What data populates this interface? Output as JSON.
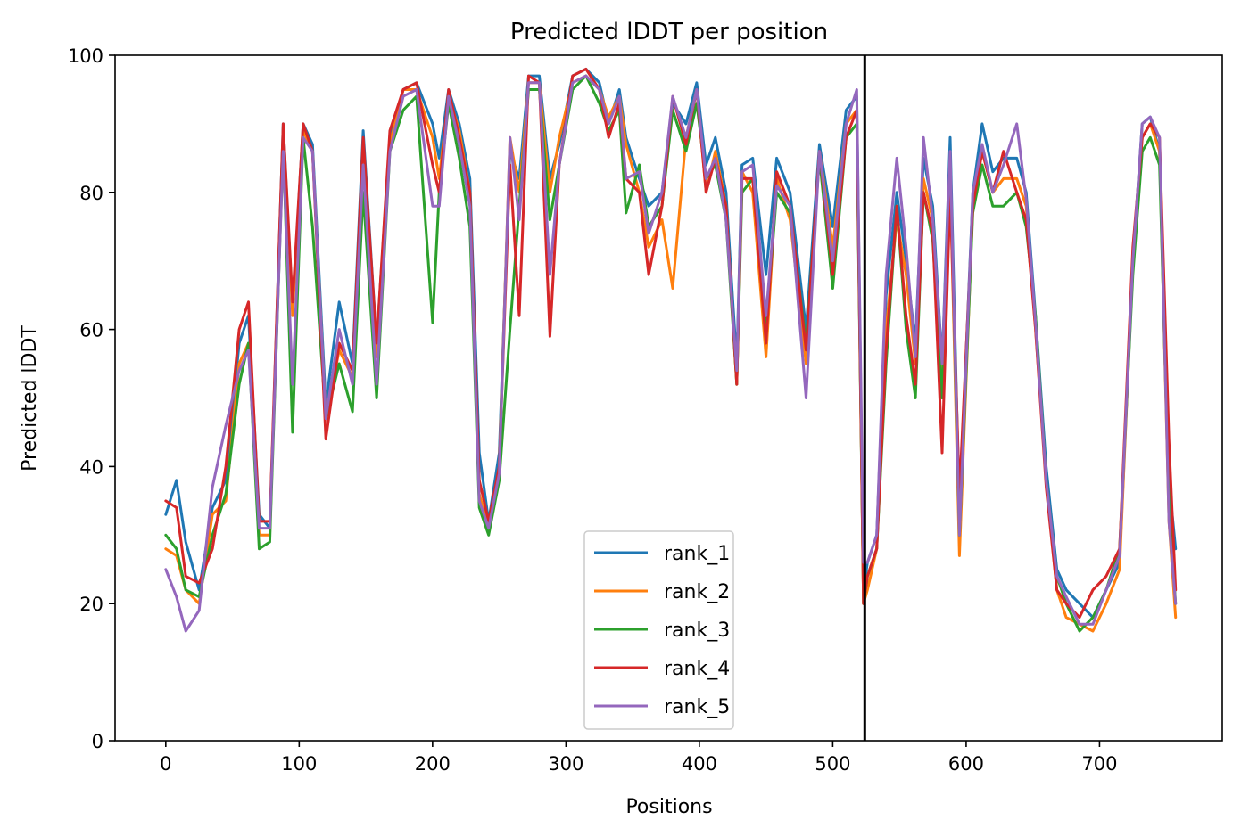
{
  "chart_data": {
    "type": "line",
    "title": "Predicted lDDT per position",
    "xlabel": "Positions",
    "ylabel": "Predicted lDDT",
    "xlim": [
      -38,
      792
    ],
    "ylim": [
      0,
      100
    ],
    "xticks": [
      0,
      100,
      200,
      300,
      400,
      500,
      600,
      700
    ],
    "yticks": [
      0,
      20,
      40,
      60,
      80,
      100
    ],
    "grid": false,
    "legend_position": "lower center",
    "vline_x": 524,
    "series": [
      {
        "name": "rank_1",
        "color": "#1f77b4",
        "x": [
          0,
          8,
          15,
          25,
          35,
          45,
          55,
          62,
          70,
          78,
          88,
          95,
          103,
          110,
          120,
          130,
          140,
          148,
          158,
          168,
          178,
          188,
          200,
          205,
          212,
          220,
          228,
          235,
          242,
          250,
          258,
          265,
          272,
          280,
          288,
          295,
          305,
          315,
          325,
          332,
          340,
          345,
          355,
          362,
          372,
          380,
          390,
          398,
          405,
          412,
          420,
          428,
          432,
          440,
          450,
          458,
          468,
          480,
          490,
          500,
          510,
          518,
          523,
          526,
          533,
          540,
          548,
          555,
          562,
          568,
          575,
          582,
          588,
          595,
          605,
          612,
          620,
          628,
          638,
          645,
          652,
          660,
          668,
          675,
          685,
          695,
          705,
          715,
          725,
          732,
          738,
          745,
          752,
          757
        ],
        "y": [
          33,
          38,
          29,
          22,
          34,
          38,
          58,
          62,
          33,
          31,
          90,
          63,
          90,
          87,
          49,
          64,
          55,
          89,
          58,
          88,
          95,
          96,
          90,
          85,
          95,
          90,
          82,
          42,
          32,
          42,
          86,
          82,
          97,
          97,
          82,
          87,
          97,
          98,
          96,
          90,
          95,
          88,
          82,
          78,
          80,
          93,
          90,
          96,
          84,
          88,
          80,
          55,
          84,
          85,
          68,
          85,
          80,
          60,
          87,
          75,
          92,
          94,
          22,
          26,
          30,
          65,
          80,
          70,
          58,
          85,
          78,
          55,
          88,
          33,
          80,
          90,
          83,
          85,
          85,
          80,
          62,
          40,
          25,
          22,
          20,
          18,
          22,
          26,
          70,
          90,
          91,
          86,
          38,
          28
        ]
      },
      {
        "name": "rank_2",
        "color": "#ff7f0e",
        "x": [
          0,
          8,
          15,
          25,
          35,
          45,
          55,
          62,
          70,
          78,
          88,
          95,
          103,
          110,
          120,
          130,
          140,
          148,
          158,
          168,
          178,
          188,
          200,
          205,
          212,
          220,
          228,
          235,
          242,
          250,
          258,
          265,
          272,
          280,
          288,
          295,
          305,
          315,
          325,
          332,
          340,
          345,
          355,
          362,
          372,
          380,
          390,
          398,
          405,
          412,
          420,
          428,
          432,
          440,
          450,
          458,
          468,
          480,
          490,
          500,
          510,
          518,
          523,
          526,
          533,
          540,
          548,
          555,
          562,
          568,
          575,
          582,
          588,
          595,
          605,
          612,
          620,
          628,
          638,
          645,
          652,
          660,
          668,
          675,
          685,
          695,
          705,
          715,
          725,
          732,
          738,
          745,
          752,
          757
        ],
        "y": [
          28,
          27,
          22,
          20,
          33,
          35,
          55,
          58,
          30,
          30,
          89,
          62,
          89,
          86,
          47,
          57,
          53,
          85,
          56,
          87,
          95,
          95,
          88,
          82,
          94,
          89,
          80,
          36,
          31,
          40,
          88,
          80,
          96,
          96,
          80,
          88,
          96,
          97,
          95,
          91,
          94,
          87,
          80,
          72,
          76,
          66,
          88,
          95,
          80,
          86,
          78,
          52,
          83,
          80,
          56,
          82,
          76,
          55,
          86,
          72,
          90,
          92,
          20,
          22,
          28,
          60,
          76,
          68,
          55,
          82,
          76,
          52,
          82,
          27,
          78,
          86,
          80,
          82,
          82,
          78,
          60,
          38,
          22,
          18,
          17,
          16,
          20,
          25,
          70,
          88,
          90,
          86,
          32,
          18
        ]
      },
      {
        "name": "rank_3",
        "color": "#2ca02c",
        "x": [
          0,
          8,
          15,
          25,
          35,
          45,
          55,
          62,
          70,
          78,
          88,
          95,
          103,
          110,
          120,
          130,
          140,
          148,
          158,
          168,
          178,
          188,
          200,
          205,
          212,
          220,
          228,
          235,
          242,
          250,
          258,
          265,
          272,
          280,
          288,
          295,
          305,
          315,
          325,
          332,
          340,
          345,
          355,
          362,
          372,
          380,
          390,
          398,
          405,
          412,
          420,
          428,
          432,
          440,
          450,
          458,
          468,
          480,
          490,
          500,
          510,
          518,
          523,
          526,
          533,
          540,
          548,
          555,
          562,
          568,
          575,
          582,
          588,
          595,
          605,
          612,
          620,
          628,
          638,
          645,
          652,
          660,
          668,
          675,
          685,
          695,
          705,
          715,
          725,
          732,
          738,
          745,
          752,
          757
        ],
        "y": [
          30,
          28,
          22,
          21,
          30,
          36,
          52,
          58,
          28,
          29,
          87,
          45,
          88,
          75,
          47,
          55,
          48,
          80,
          50,
          86,
          92,
          94,
          61,
          80,
          93,
          85,
          75,
          34,
          30,
          38,
          60,
          78,
          95,
          95,
          76,
          84,
          95,
          97,
          93,
          89,
          92,
          77,
          84,
          75,
          78,
          92,
          86,
          93,
          82,
          84,
          76,
          52,
          80,
          82,
          60,
          80,
          77,
          58,
          85,
          66,
          88,
          90,
          20,
          24,
          28,
          55,
          78,
          60,
          50,
          80,
          73,
          50,
          84,
          30,
          77,
          84,
          78,
          78,
          80,
          75,
          62,
          38,
          24,
          20,
          16,
          18,
          22,
          28,
          68,
          86,
          88,
          84,
          35,
          20
        ]
      },
      {
        "name": "rank_4",
        "color": "#d62728",
        "x": [
          0,
          8,
          15,
          25,
          35,
          45,
          55,
          62,
          70,
          78,
          88,
          95,
          103,
          110,
          120,
          130,
          140,
          148,
          158,
          168,
          178,
          188,
          200,
          205,
          212,
          220,
          228,
          235,
          242,
          250,
          258,
          265,
          272,
          280,
          288,
          295,
          305,
          315,
          325,
          332,
          340,
          345,
          355,
          362,
          372,
          380,
          390,
          398,
          405,
          412,
          420,
          428,
          432,
          440,
          450,
          458,
          468,
          480,
          490,
          500,
          510,
          518,
          523,
          526,
          533,
          540,
          548,
          555,
          562,
          568,
          575,
          582,
          588,
          595,
          605,
          612,
          620,
          628,
          638,
          645,
          652,
          660,
          668,
          675,
          685,
          695,
          705,
          715,
          725,
          732,
          738,
          745,
          752,
          757
        ],
        "y": [
          35,
          34,
          24,
          23,
          28,
          40,
          60,
          64,
          32,
          32,
          90,
          64,
          90,
          86,
          44,
          58,
          54,
          88,
          58,
          89,
          95,
          96,
          84,
          80,
          95,
          88,
          80,
          38,
          32,
          40,
          84,
          62,
          97,
          96,
          59,
          84,
          97,
          98,
          95,
          88,
          93,
          82,
          80,
          68,
          78,
          94,
          87,
          95,
          80,
          85,
          78,
          52,
          82,
          82,
          58,
          83,
          78,
          57,
          86,
          68,
          88,
          92,
          20,
          24,
          28,
          57,
          78,
          62,
          52,
          80,
          74,
          42,
          80,
          36,
          78,
          86,
          80,
          86,
          80,
          76,
          60,
          37,
          22,
          20,
          18,
          22,
          24,
          28,
          72,
          88,
          90,
          88,
          44,
          22
        ]
      },
      {
        "name": "rank_5",
        "color": "#9467bd",
        "x": [
          0,
          8,
          15,
          25,
          35,
          45,
          55,
          62,
          70,
          78,
          88,
          95,
          103,
          110,
          120,
          130,
          140,
          148,
          158,
          168,
          178,
          188,
          200,
          205,
          212,
          220,
          228,
          235,
          242,
          250,
          258,
          265,
          272,
          280,
          288,
          295,
          305,
          315,
          325,
          332,
          340,
          345,
          355,
          362,
          372,
          380,
          390,
          398,
          405,
          412,
          420,
          428,
          432,
          440,
          450,
          458,
          468,
          480,
          490,
          500,
          510,
          518,
          523,
          526,
          533,
          540,
          548,
          555,
          562,
          568,
          575,
          582,
          588,
          595,
          605,
          612,
          620,
          628,
          638,
          645,
          652,
          660,
          668,
          675,
          685,
          695,
          705,
          715,
          725,
          732,
          738,
          745,
          752,
          757
        ],
        "y": [
          25,
          21,
          16,
          19,
          37,
          46,
          54,
          57,
          31,
          31,
          86,
          52,
          88,
          86,
          47,
          60,
          52,
          84,
          52,
          86,
          94,
          95,
          78,
          78,
          94,
          87,
          78,
          35,
          31,
          39,
          88,
          76,
          96,
          96,
          68,
          84,
          96,
          97,
          95,
          90,
          94,
          82,
          83,
          74,
          80,
          94,
          88,
          95,
          82,
          85,
          76,
          54,
          83,
          84,
          62,
          81,
          78,
          50,
          86,
          70,
          90,
          95,
          26,
          26,
          30,
          68,
          85,
          72,
          56,
          88,
          76,
          55,
          86,
          30,
          80,
          87,
          80,
          84,
          90,
          79,
          61,
          38,
          24,
          21,
          17,
          17,
          22,
          27,
          70,
          90,
          91,
          88,
          32,
          20
        ]
      }
    ]
  }
}
